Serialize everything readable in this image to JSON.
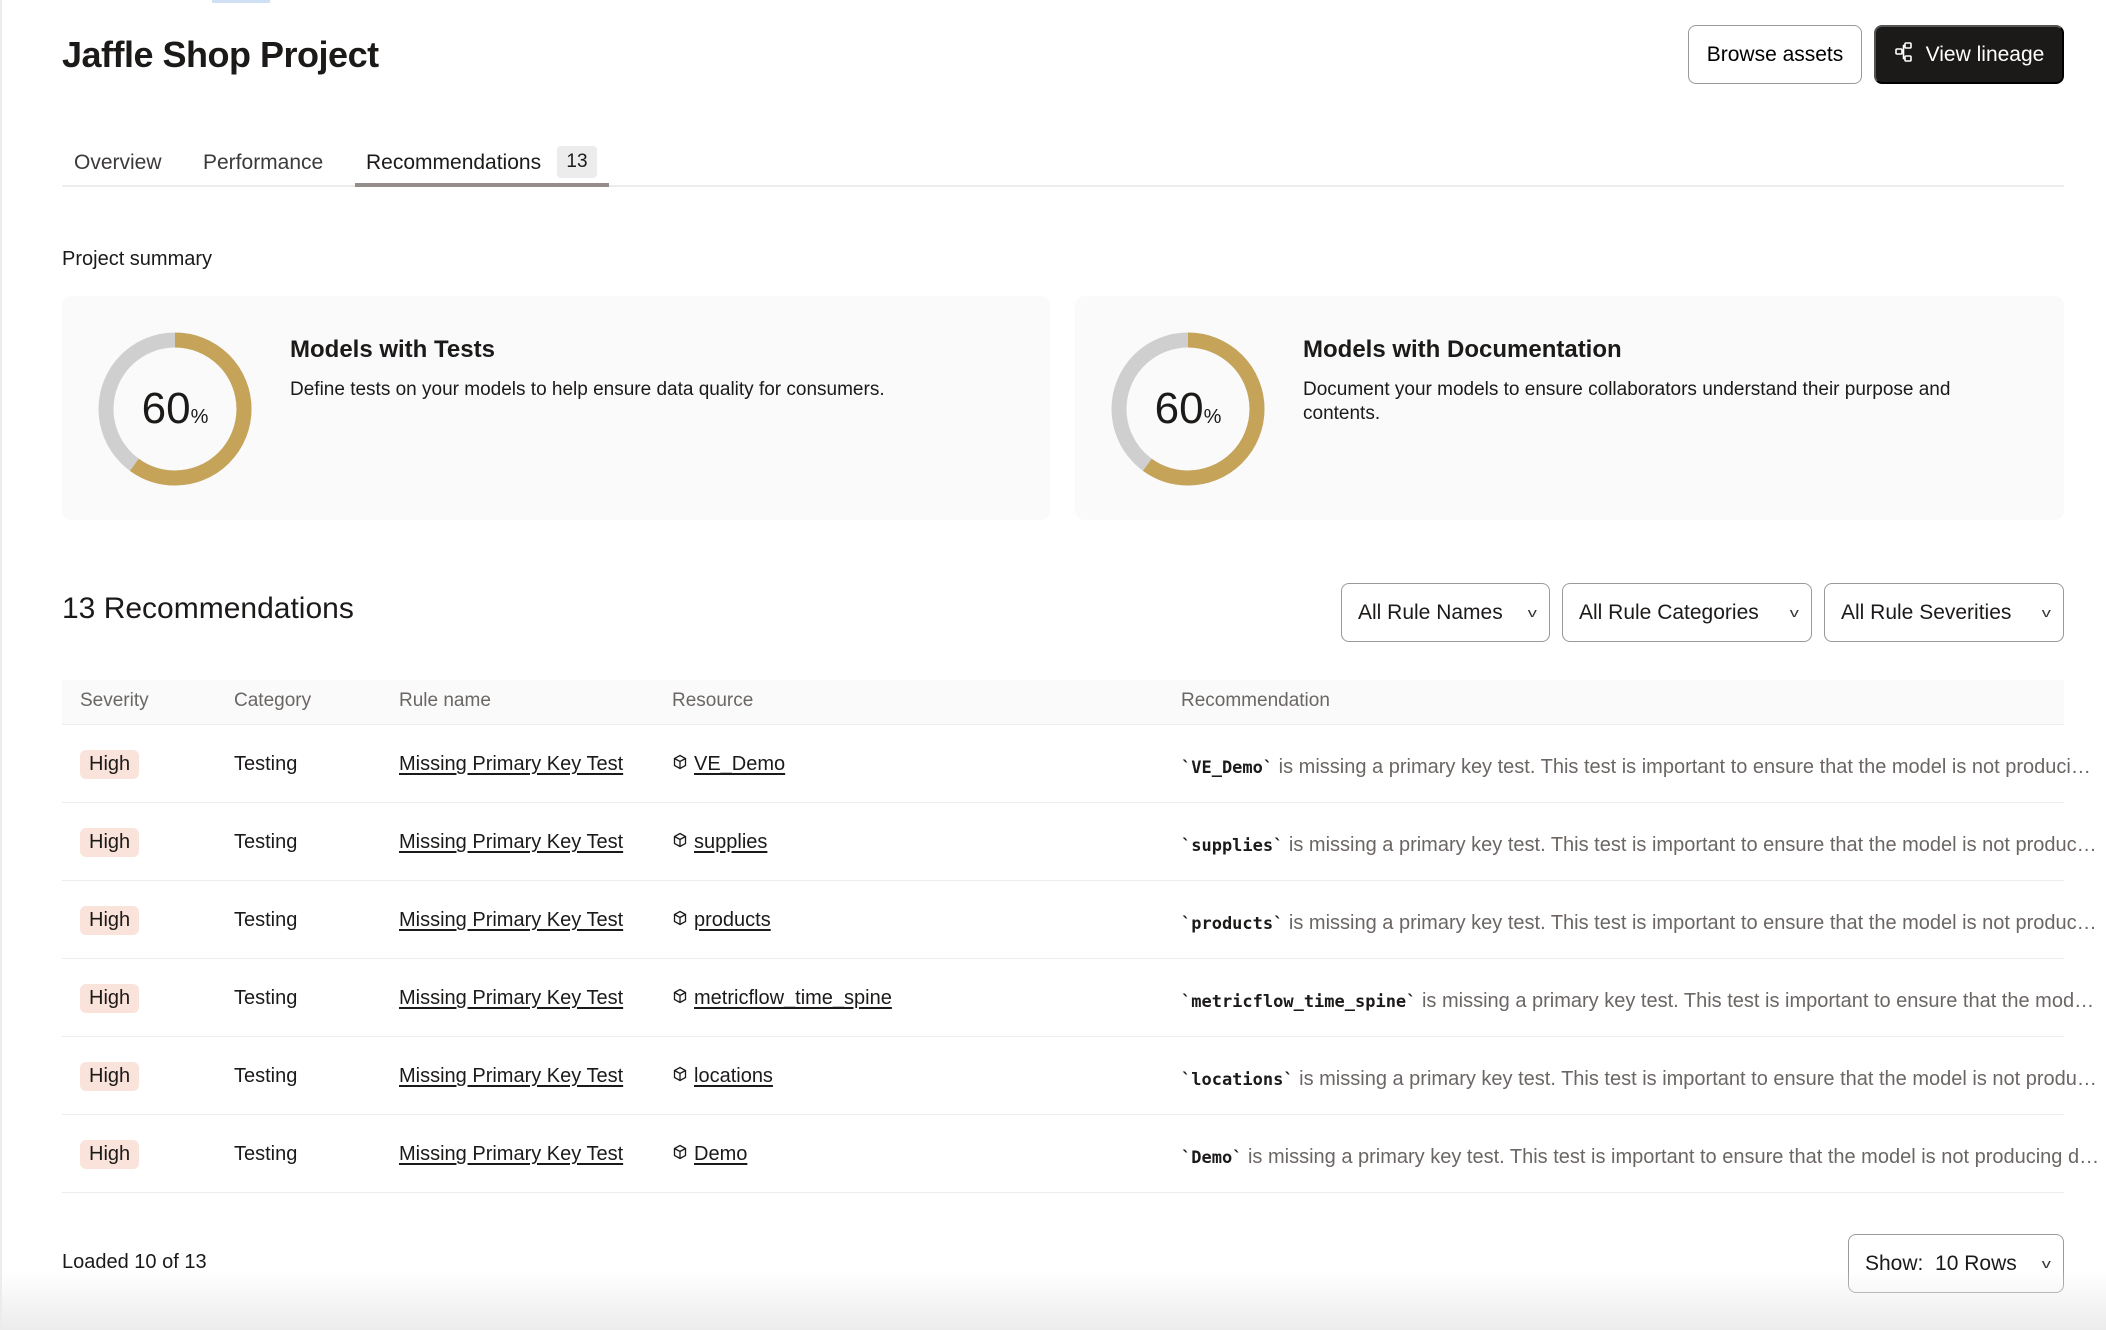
{
  "header": {
    "title": "Jaffle Shop Project",
    "browse_assets": "Browse assets",
    "view_lineage": "View lineage"
  },
  "tabs": [
    {
      "label": "Overview"
    },
    {
      "label": "Performance"
    },
    {
      "label": "Recommendations",
      "count": "13",
      "active": true
    }
  ],
  "summary": {
    "label": "Project summary",
    "cards": [
      {
        "percent": 60,
        "percent_text": "60",
        "percent_sign": "%",
        "title": "Models with Tests",
        "description": "Define tests on your models to help ensure data quality for consumers."
      },
      {
        "percent": 60,
        "percent_text": "60",
        "percent_sign": "%",
        "title": "Models with Documentation",
        "description": "Document your models to ensure collaborators understand their purpose and contents."
      }
    ],
    "colors": {
      "progress": "#c5a459",
      "track": "#cfcfcf"
    }
  },
  "recommendations": {
    "title": "13 Recommendations",
    "filters": [
      "All Rule Names",
      "All Rule Categories",
      "All Rule Severities"
    ],
    "columns": [
      "Severity",
      "Category",
      "Rule name",
      "Resource",
      "Recommendation"
    ],
    "rows": [
      {
        "severity": "High",
        "category": "Testing",
        "rule": "Missing Primary Key Test",
        "resource": "VE_Demo",
        "code": "`VE_Demo`",
        "text": " is missing a primary key test. This test is important to ensure that the model is not producing duplicate rows."
      },
      {
        "severity": "High",
        "category": "Testing",
        "rule": "Missing Primary Key Test",
        "resource": "supplies",
        "code": "`supplies`",
        "text": " is missing a primary key test. This test is important to ensure that the model is not producing duplicate rows."
      },
      {
        "severity": "High",
        "category": "Testing",
        "rule": "Missing Primary Key Test",
        "resource": "products",
        "code": "`products`",
        "text": " is missing a primary key test. This test is important to ensure that the model is not producing duplicate rows."
      },
      {
        "severity": "High",
        "category": "Testing",
        "rule": "Missing Primary Key Test",
        "resource": "metricflow_time_spine",
        "code": "`metricflow_time_spine`",
        "text": " is missing a primary key test. This test is important to ensure that the model is not producing duplicate rows."
      },
      {
        "severity": "High",
        "category": "Testing",
        "rule": "Missing Primary Key Test",
        "resource": "locations",
        "code": "`locations`",
        "text": " is missing a primary key test. This test is important to ensure that the model is not producing duplicate rows."
      },
      {
        "severity": "High",
        "category": "Testing",
        "rule": "Missing Primary Key Test",
        "resource": "Demo",
        "code": "`Demo`",
        "text": " is missing a primary key test. This test is important to ensure that the model is not producing duplicate rows."
      }
    ]
  },
  "footer": {
    "loaded": "Loaded 10 of 13",
    "show_label": "Show:",
    "show_value": "10 Rows"
  }
}
